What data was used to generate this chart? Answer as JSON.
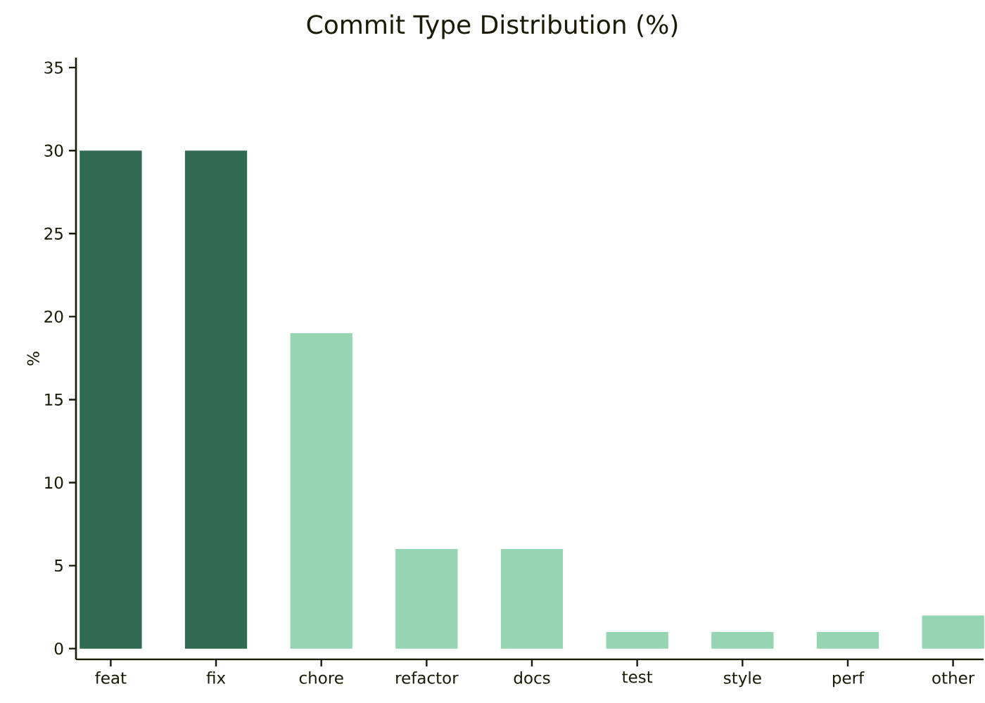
{
  "chart_data": {
    "type": "bar",
    "title": "Commit Type Distribution (%)",
    "ylabel": "%",
    "categories": [
      "feat",
      "fix",
      "chore",
      "refactor",
      "docs",
      "test",
      "style",
      "perf",
      "other"
    ],
    "values": [
      30,
      30,
      19,
      6,
      6,
      1,
      1,
      1,
      2
    ],
    "colors": [
      "#2e6b52",
      "#2e6b52",
      "#96d5b1",
      "#96d5b1",
      "#96d5b1",
      "#96d5b1",
      "#96d5b1",
      "#96d5b1",
      "#96d5b1"
    ],
    "ylim": [
      -0.65,
      35.6
    ],
    "yticks": [
      0,
      5,
      10,
      15,
      20,
      25,
      30,
      35
    ]
  }
}
